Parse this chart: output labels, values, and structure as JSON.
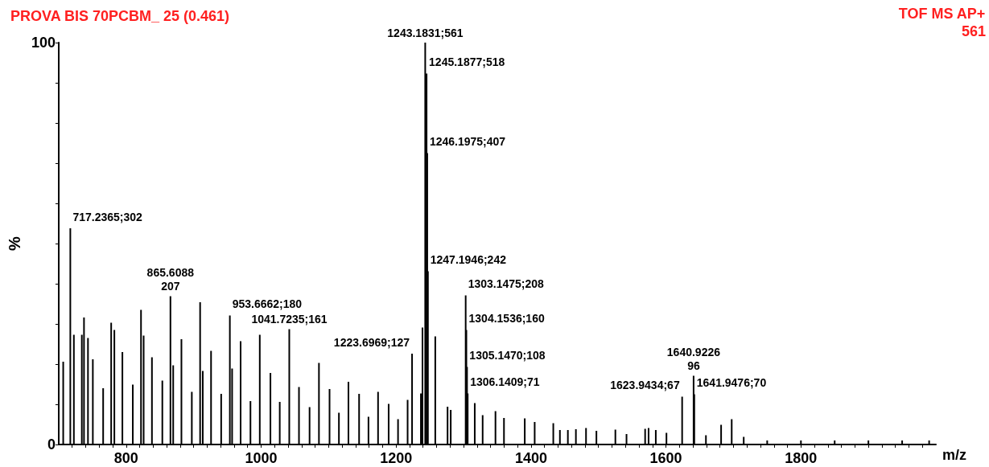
{
  "chart_data": {
    "type": "bar",
    "title": "PROVA BIS 70PCBM_ 25 (0.461)",
    "xlabel": "m/z",
    "ylabel": "%",
    "color": "#000000",
    "x": [
      706.7,
      717.2365,
      722.5,
      734.3,
      737.5,
      743.4,
      750.6,
      765.9,
      777.8,
      782.5,
      794.4,
      809.8,
      822,
      825.9,
      838.2,
      853.6,
      865.6088,
      869.7,
      881.9,
      897.3,
      909.6,
      913.5,
      925.8,
      940.8,
      953.6662,
      957,
      969.6,
      984.2,
      998,
      1013.8,
      1027.6,
      1041.7235,
      1056.1,
      1071.8,
      1085.7,
      1101.4,
      1115.3,
      1129.4,
      1145.2,
      1159.1,
      1173.3,
      1189,
      1202.9,
      1217.1,
      1223.6969,
      1236.8,
      1239.1,
      1243.1831,
      1245.1877,
      1246.1975,
      1247.1946,
      1258.1,
      1276.3,
      1281,
      1303.1475,
      1304.1536,
      1305.147,
      1306.1409,
      1316.6,
      1328.3,
      1347.3,
      1359.9,
      1390.7,
      1405.4,
      1433,
      1442.8,
      1454.6,
      1466.5,
      1481.5,
      1496.9,
      1525,
      1541.5,
      1569.1,
      1574.2,
      1584.9,
      1600.7,
      1623.9434,
      1640.9226,
      1641.9476,
      1659.2,
      1681.7,
      1697.4,
      1715.2,
      1750,
      1800,
      1850,
      1900,
      1950,
      1990
    ],
    "values": [
      20.6,
      53.8,
      27.3,
      27.3,
      31.6,
      26.5,
      21.2,
      14,
      30.3,
      28.5,
      23,
      14.9,
      33.5,
      27.1,
      21.7,
      15.9,
      36.9,
      19.7,
      26.2,
      13.1,
      35.4,
      18.3,
      23.3,
      12.6,
      32.1,
      18.9,
      25.7,
      10.8,
      27.3,
      17.8,
      10.6,
      28.7,
      14.3,
      9.3,
      20.3,
      13.8,
      7.9,
      15.6,
      12.6,
      6.9,
      13.1,
      10.1,
      6.3,
      11.1,
      22.6,
      12.7,
      29.1,
      100,
      92.3,
      72.5,
      43.1,
      26.9,
      9.4,
      8.6,
      37.1,
      28.5,
      19.3,
      12.7,
      10.3,
      7.3,
      8.3,
      6.6,
      6.5,
      5.6,
      5.3,
      3.6,
      3.6,
      3.8,
      4.1,
      3.4,
      3.7,
      2.6,
      3.9,
      4.1,
      3.6,
      2.9,
      11.9,
      17.1,
      12.5,
      2.3,
      4.9,
      6.3,
      1.9,
      1,
      1,
      1,
      1,
      1,
      1
    ],
    "xlim": [
      700,
      2000
    ],
    "xticks": [
      {
        "value": 720,
        "label": null
      },
      {
        "value": 740,
        "label": null
      },
      {
        "value": 760,
        "label": null
      },
      {
        "value": 780,
        "label": null
      },
      800,
      {
        "value": 820,
        "label": null
      },
      {
        "value": 840,
        "label": null
      },
      {
        "value": 860,
        "label": null
      },
      {
        "value": 880,
        "label": null
      },
      {
        "value": 900,
        "label": null
      },
      {
        "value": 920,
        "label": null
      },
      {
        "value": 940,
        "label": null
      },
      {
        "value": 960,
        "label": null
      },
      {
        "value": 980,
        "label": null
      },
      1000,
      {
        "value": 1020,
        "label": null
      },
      {
        "value": 1040,
        "label": null
      },
      {
        "value": 1060,
        "label": null
      },
      {
        "value": 1080,
        "label": null
      },
      {
        "value": 1100,
        "label": null
      },
      {
        "value": 1120,
        "label": null
      },
      {
        "value": 1140,
        "label": null
      },
      {
        "value": 1160,
        "label": null
      },
      {
        "value": 1180,
        "label": null
      },
      1200,
      {
        "value": 1220,
        "label": null
      },
      {
        "value": 1240,
        "label": null
      },
      {
        "value": 1260,
        "label": null
      },
      {
        "value": 1280,
        "label": null
      },
      {
        "value": 1300,
        "label": null
      },
      {
        "value": 1320,
        "label": null
      },
      {
        "value": 1340,
        "label": null
      },
      {
        "value": 1360,
        "label": null
      },
      {
        "value": 1380,
        "label": null
      },
      1400,
      {
        "value": 1420,
        "label": null
      },
      {
        "value": 1440,
        "label": null
      },
      {
        "value": 1460,
        "label": null
      },
      {
        "value": 1480,
        "label": null
      },
      {
        "value": 1500,
        "label": null
      },
      {
        "value": 1520,
        "label": null
      },
      {
        "value": 1540,
        "label": null
      },
      {
        "value": 1560,
        "label": null
      },
      {
        "value": 1580,
        "label": null
      },
      1600,
      {
        "value": 1620,
        "label": null
      },
      {
        "value": 1640,
        "label": null
      },
      {
        "value": 1660,
        "label": null
      },
      {
        "value": 1680,
        "label": null
      },
      {
        "value": 1700,
        "label": null
      },
      {
        "value": 1720,
        "label": null
      },
      {
        "value": 1740,
        "label": null
      },
      {
        "value": 1760,
        "label": null
      },
      {
        "value": 1780,
        "label": null
      },
      1800,
      {
        "value": 1820,
        "label": null
      },
      {
        "value": 1840,
        "label": null
      },
      {
        "value": 1860,
        "label": null
      },
      {
        "value": 1880,
        "label": null
      },
      {
        "value": 1900,
        "label": null
      },
      {
        "value": 1920,
        "label": null
      },
      {
        "value": 1940,
        "label": null
      },
      {
        "value": 1960,
        "label": null
      },
      {
        "value": 1980,
        "label": null
      }
    ],
    "ylim": [
      0,
      100
    ],
    "yticks": [
      0,
      {
        "value": 10,
        "label": null
      },
      {
        "value": 20,
        "label": null
      },
      {
        "value": 30,
        "label": null
      },
      {
        "value": 40,
        "label": null
      },
      {
        "value": 50,
        "label": null
      },
      {
        "value": 60,
        "label": null
      },
      {
        "value": 70,
        "label": null
      },
      {
        "value": 80,
        "label": null
      },
      {
        "value": 90,
        "label": null
      },
      100
    ],
    "grid": false,
    "annotations": [
      {
        "text": "717.2365;302",
        "x": 717.2365,
        "y": 53.8
      },
      {
        "text": "865.6088\n207",
        "x": 865.6088,
        "y": 36.9
      },
      {
        "text": "953.6662;180",
        "x": 953.6662,
        "y": 32.1
      },
      {
        "text": "1041.7235;161",
        "x": 1041.7235,
        "y": 28.7
      },
      {
        "text": "1223.6969;127",
        "x": 1223.6969,
        "y": 22.6
      },
      {
        "text": "1243.1831;561",
        "x": 1243.1831,
        "y": 100
      },
      {
        "text": "1245.1877;518",
        "x": 1245.1877,
        "y": 92.3
      },
      {
        "text": "1246.1975;407",
        "x": 1246.1975,
        "y": 72.5
      },
      {
        "text": "1247.1946;242",
        "x": 1247.1946,
        "y": 43.1
      },
      {
        "text": "1303.1475;208",
        "x": 1303.1475,
        "y": 37.1
      },
      {
        "text": "1304.1536;160",
        "x": 1304.1536,
        "y": 28.5
      },
      {
        "text": "1305.1470;108",
        "x": 1305.147,
        "y": 19.3
      },
      {
        "text": "1306.1409;71",
        "x": 1306.1409,
        "y": 12.7
      },
      {
        "text": "1623.9434;67",
        "x": 1623.9434,
        "y": 11.9
      },
      {
        "text": "1640.9226\n96",
        "x": 1640.9226,
        "y": 17.1
      },
      {
        "text": "1641.9476;70",
        "x": 1641.9476,
        "y": 12.5
      },
      "TOF MS AP+",
      "561"
    ]
  }
}
